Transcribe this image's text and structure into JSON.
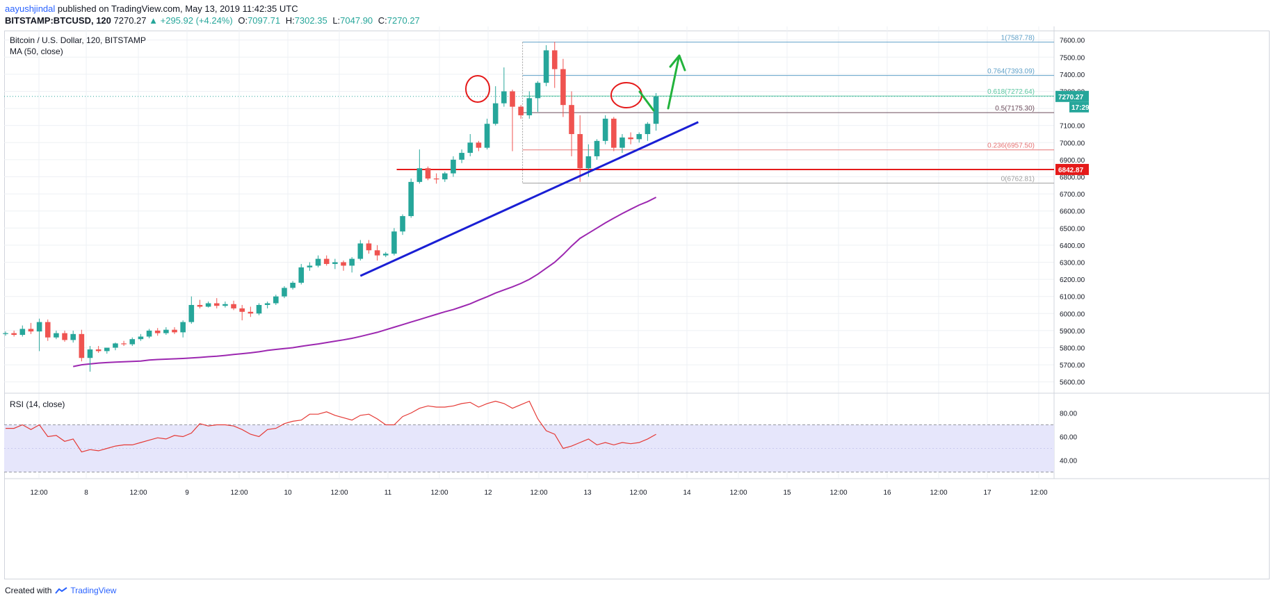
{
  "header": {
    "author": "aayushjindal",
    "published": "published on TradingView.com, May 13, 2019 11:42:35 UTC",
    "symbol_line": "BITSTAMP:BTCUSD, 120",
    "last": "7270.27",
    "change": "▲ +295.92 (+4.24%)",
    "open_label": "O:",
    "open": "7097.71",
    "high_label": "H:",
    "high": "7302.35",
    "low_label": "L:",
    "low": "7047.90",
    "close_label": "C:",
    "close": "7270.27"
  },
  "legend": {
    "title": "Bitcoin / U.S. Dollar, 120, BITSTAMP",
    "ma": "MA (50, close)",
    "rsi": "RSI (14, close)"
  },
  "footer": {
    "created_with": "Created with",
    "brand": "TradingView"
  },
  "colors": {
    "up": "#26a69a",
    "down": "#ef5350",
    "ma": "#9c27b0",
    "trend": "#1a1fd4",
    "support": "#e51a1a",
    "rsi": "#e53935",
    "rsi_band": "#e6e6fb",
    "arrow": "#22b33c",
    "fib_blue": "#5fa0c8",
    "fib_green": "#5bc6a0",
    "fib_dark": "#6b4b5a",
    "fib_red": "#e57373",
    "fib_gray": "#9e9e9e"
  },
  "chart_data": {
    "type": "candlestick",
    "price_axis": {
      "ylim": [
        5550,
        7680
      ],
      "ticks": [
        5600,
        5700,
        5800,
        5900,
        6000,
        6100,
        6200,
        6300,
        6400,
        6500,
        6600,
        6700,
        6800,
        6900,
        7000,
        7100,
        7200,
        7300,
        7400,
        7500,
        7600
      ]
    },
    "time_axis": {
      "labels": [
        "12:00",
        "8",
        "12:00",
        "9",
        "12:00",
        "10",
        "12:00",
        "11",
        "12:00",
        "12",
        "12:00",
        "13",
        "12:00",
        "14",
        "12:00",
        "15",
        "12:00",
        "16",
        "12:00",
        "17",
        "12:00"
      ]
    },
    "price_labels": {
      "last": "7270.27",
      "countdown": "17:29",
      "support": "6842.87"
    },
    "support_level": 6842.87,
    "candles": [
      {
        "o": 5880,
        "h": 5895,
        "l": 5870,
        "c": 5885
      },
      {
        "o": 5885,
        "h": 5900,
        "l": 5865,
        "c": 5875
      },
      {
        "o": 5875,
        "h": 5930,
        "l": 5865,
        "c": 5910
      },
      {
        "o": 5910,
        "h": 5945,
        "l": 5880,
        "c": 5895
      },
      {
        "o": 5895,
        "h": 5970,
        "l": 5780,
        "c": 5950
      },
      {
        "o": 5950,
        "h": 5965,
        "l": 5840,
        "c": 5860
      },
      {
        "o": 5860,
        "h": 5900,
        "l": 5850,
        "c": 5885
      },
      {
        "o": 5885,
        "h": 5900,
        "l": 5835,
        "c": 5845
      },
      {
        "o": 5845,
        "h": 5900,
        "l": 5830,
        "c": 5880
      },
      {
        "o": 5880,
        "h": 5905,
        "l": 5720,
        "c": 5740
      },
      {
        "o": 5740,
        "h": 5810,
        "l": 5660,
        "c": 5790
      },
      {
        "o": 5790,
        "h": 5810,
        "l": 5770,
        "c": 5780
      },
      {
        "o": 5780,
        "h": 5800,
        "l": 5765,
        "c": 5800
      },
      {
        "o": 5800,
        "h": 5830,
        "l": 5785,
        "c": 5825
      },
      {
        "o": 5825,
        "h": 5840,
        "l": 5810,
        "c": 5820
      },
      {
        "o": 5820,
        "h": 5860,
        "l": 5810,
        "c": 5850
      },
      {
        "o": 5850,
        "h": 5880,
        "l": 5840,
        "c": 5865
      },
      {
        "o": 5865,
        "h": 5910,
        "l": 5855,
        "c": 5900
      },
      {
        "o": 5900,
        "h": 5915,
        "l": 5870,
        "c": 5885
      },
      {
        "o": 5885,
        "h": 5920,
        "l": 5875,
        "c": 5905
      },
      {
        "o": 5905,
        "h": 5920,
        "l": 5880,
        "c": 5890
      },
      {
        "o": 5890,
        "h": 5960,
        "l": 5860,
        "c": 5950
      },
      {
        "o": 5950,
        "h": 6100,
        "l": 5940,
        "c": 6050
      },
      {
        "o": 6050,
        "h": 6080,
        "l": 6030,
        "c": 6040
      },
      {
        "o": 6040,
        "h": 6070,
        "l": 6035,
        "c": 6060
      },
      {
        "o": 6060,
        "h": 6090,
        "l": 6030,
        "c": 6045
      },
      {
        "o": 6045,
        "h": 6070,
        "l": 6035,
        "c": 6055
      },
      {
        "o": 6055,
        "h": 6075,
        "l": 6020,
        "c": 6030
      },
      {
        "o": 6030,
        "h": 6050,
        "l": 5960,
        "c": 6010
      },
      {
        "o": 6010,
        "h": 6040,
        "l": 5980,
        "c": 6000
      },
      {
        "o": 6000,
        "h": 6060,
        "l": 5990,
        "c": 6050
      },
      {
        "o": 6050,
        "h": 6070,
        "l": 6030,
        "c": 6060
      },
      {
        "o": 6060,
        "h": 6110,
        "l": 6050,
        "c": 6100
      },
      {
        "o": 6100,
        "h": 6160,
        "l": 6090,
        "c": 6150
      },
      {
        "o": 6150,
        "h": 6190,
        "l": 6140,
        "c": 6180
      },
      {
        "o": 6180,
        "h": 6290,
        "l": 6170,
        "c": 6270
      },
      {
        "o": 6270,
        "h": 6300,
        "l": 6250,
        "c": 6280
      },
      {
        "o": 6280,
        "h": 6340,
        "l": 6270,
        "c": 6320
      },
      {
        "o": 6320,
        "h": 6340,
        "l": 6280,
        "c": 6290
      },
      {
        "o": 6290,
        "h": 6320,
        "l": 6260,
        "c": 6300
      },
      {
        "o": 6300,
        "h": 6310,
        "l": 6250,
        "c": 6280
      },
      {
        "o": 6280,
        "h": 6330,
        "l": 6240,
        "c": 6320
      },
      {
        "o": 6320,
        "h": 6430,
        "l": 6310,
        "c": 6410
      },
      {
        "o": 6410,
        "h": 6430,
        "l": 6350,
        "c": 6370
      },
      {
        "o": 6370,
        "h": 6400,
        "l": 6310,
        "c": 6340
      },
      {
        "o": 6340,
        "h": 6360,
        "l": 6330,
        "c": 6350
      },
      {
        "o": 6350,
        "h": 6500,
        "l": 6340,
        "c": 6480
      },
      {
        "o": 6480,
        "h": 6580,
        "l": 6460,
        "c": 6570
      },
      {
        "o": 6570,
        "h": 6790,
        "l": 6560,
        "c": 6770
      },
      {
        "o": 6770,
        "h": 6960,
        "l": 6760,
        "c": 6850
      },
      {
        "o": 6850,
        "h": 6860,
        "l": 6780,
        "c": 6790
      },
      {
        "o": 6790,
        "h": 6820,
        "l": 6760,
        "c": 6785
      },
      {
        "o": 6785,
        "h": 6830,
        "l": 6770,
        "c": 6820
      },
      {
        "o": 6820,
        "h": 6920,
        "l": 6800,
        "c": 6900
      },
      {
        "o": 6900,
        "h": 6960,
        "l": 6880,
        "c": 6940
      },
      {
        "o": 6940,
        "h": 7050,
        "l": 6920,
        "c": 7000
      },
      {
        "o": 7000,
        "h": 7010,
        "l": 6950,
        "c": 6970
      },
      {
        "o": 6970,
        "h": 7140,
        "l": 6960,
        "c": 7110
      },
      {
        "o": 7110,
        "h": 7330,
        "l": 7100,
        "c": 7230
      },
      {
        "o": 7230,
        "h": 7440,
        "l": 7210,
        "c": 7300
      },
      {
        "o": 7300,
        "h": 7310,
        "l": 6950,
        "c": 7210
      },
      {
        "o": 7210,
        "h": 7220,
        "l": 7140,
        "c": 7160
      },
      {
        "o": 7160,
        "h": 7300,
        "l": 7140,
        "c": 7260
      },
      {
        "o": 7260,
        "h": 7360,
        "l": 7180,
        "c": 7350
      },
      {
        "o": 7350,
        "h": 7570,
        "l": 7330,
        "c": 7540
      },
      {
        "o": 7540,
        "h": 7590,
        "l": 7320,
        "c": 7430
      },
      {
        "o": 7430,
        "h": 7490,
        "l": 7150,
        "c": 7220
      },
      {
        "o": 7220,
        "h": 7300,
        "l": 6920,
        "c": 7050
      },
      {
        "o": 7050,
        "h": 7160,
        "l": 6770,
        "c": 6850
      },
      {
        "o": 6850,
        "h": 6990,
        "l": 6800,
        "c": 6920
      },
      {
        "o": 6920,
        "h": 7020,
        "l": 6900,
        "c": 7010
      },
      {
        "o": 7010,
        "h": 7160,
        "l": 6990,
        "c": 7140
      },
      {
        "o": 7140,
        "h": 7150,
        "l": 6950,
        "c": 6970
      },
      {
        "o": 6970,
        "h": 7050,
        "l": 6940,
        "c": 7030
      },
      {
        "o": 7030,
        "h": 7060,
        "l": 6990,
        "c": 7020
      },
      {
        "o": 7020,
        "h": 7060,
        "l": 7000,
        "c": 7050
      },
      {
        "o": 7050,
        "h": 7120,
        "l": 7010,
        "c": 7110
      },
      {
        "o": 7110,
        "h": 7290,
        "l": 7070,
        "c": 7270
      }
    ],
    "ma50": [
      5690,
      5700,
      5705,
      5710,
      5713,
      5716,
      5718,
      5720,
      5722,
      5728,
      5731,
      5733,
      5735,
      5737,
      5740,
      5743,
      5747,
      5750,
      5755,
      5760,
      5765,
      5770,
      5776,
      5784,
      5790,
      5795,
      5800,
      5808,
      5815,
      5822,
      5830,
      5838,
      5846,
      5855,
      5866,
      5878,
      5890,
      5905,
      5920,
      5935,
      5950,
      5965,
      5980,
      5995,
      6010,
      6023,
      6040,
      6057,
      6078,
      6098,
      6120,
      6138,
      6156,
      6176,
      6200,
      6230,
      6265,
      6300,
      6345,
      6395,
      6440,
      6470,
      6500,
      6530,
      6558,
      6585,
      6610,
      6635,
      6655,
      6680
    ],
    "ma_end_index": 77,
    "fibonacci": {
      "levels": [
        {
          "ratio": "1",
          "price": 7587.78,
          "label": "1(7587.78)"
        },
        {
          "ratio": "0.764",
          "price": 7393.09,
          "label": "0.764(7393.09)"
        },
        {
          "ratio": "0.618",
          "price": 7272.64,
          "label": "0.618(7272.64)"
        },
        {
          "ratio": "0.5",
          "price": 7175.3,
          "label": "0.5(7175.30)"
        },
        {
          "ratio": "0.236",
          "price": 6957.5,
          "label": "0.236(6957.50)"
        },
        {
          "ratio": "0",
          "price": 6762.81,
          "label": "0(6762.81)"
        }
      ]
    },
    "trendline": {
      "from": {
        "i": 42,
        "p": 6220
      },
      "to": {
        "i": 82,
        "p": 7120
      }
    },
    "rsi": {
      "ylim": [
        25,
        95
      ],
      "ticks": [
        40,
        60,
        80
      ],
      "band": [
        30,
        70
      ],
      "values": [
        67,
        67,
        70,
        66,
        70,
        60,
        61,
        56,
        58,
        47,
        49,
        48,
        50,
        52,
        53,
        53,
        55,
        57,
        59,
        58,
        61,
        60,
        63,
        71,
        69,
        70,
        70,
        69,
        66,
        62,
        60,
        66,
        67,
        71,
        73,
        74,
        79,
        79,
        81,
        78,
        76,
        74,
        78,
        79,
        75,
        70,
        70,
        77,
        80,
        84,
        86,
        85,
        85,
        86,
        88,
        89,
        85,
        88,
        90,
        88,
        84,
        87,
        90,
        75,
        65,
        62,
        50,
        52,
        55,
        58,
        53,
        55,
        53,
        55,
        54,
        55,
        58,
        62
      ]
    }
  }
}
